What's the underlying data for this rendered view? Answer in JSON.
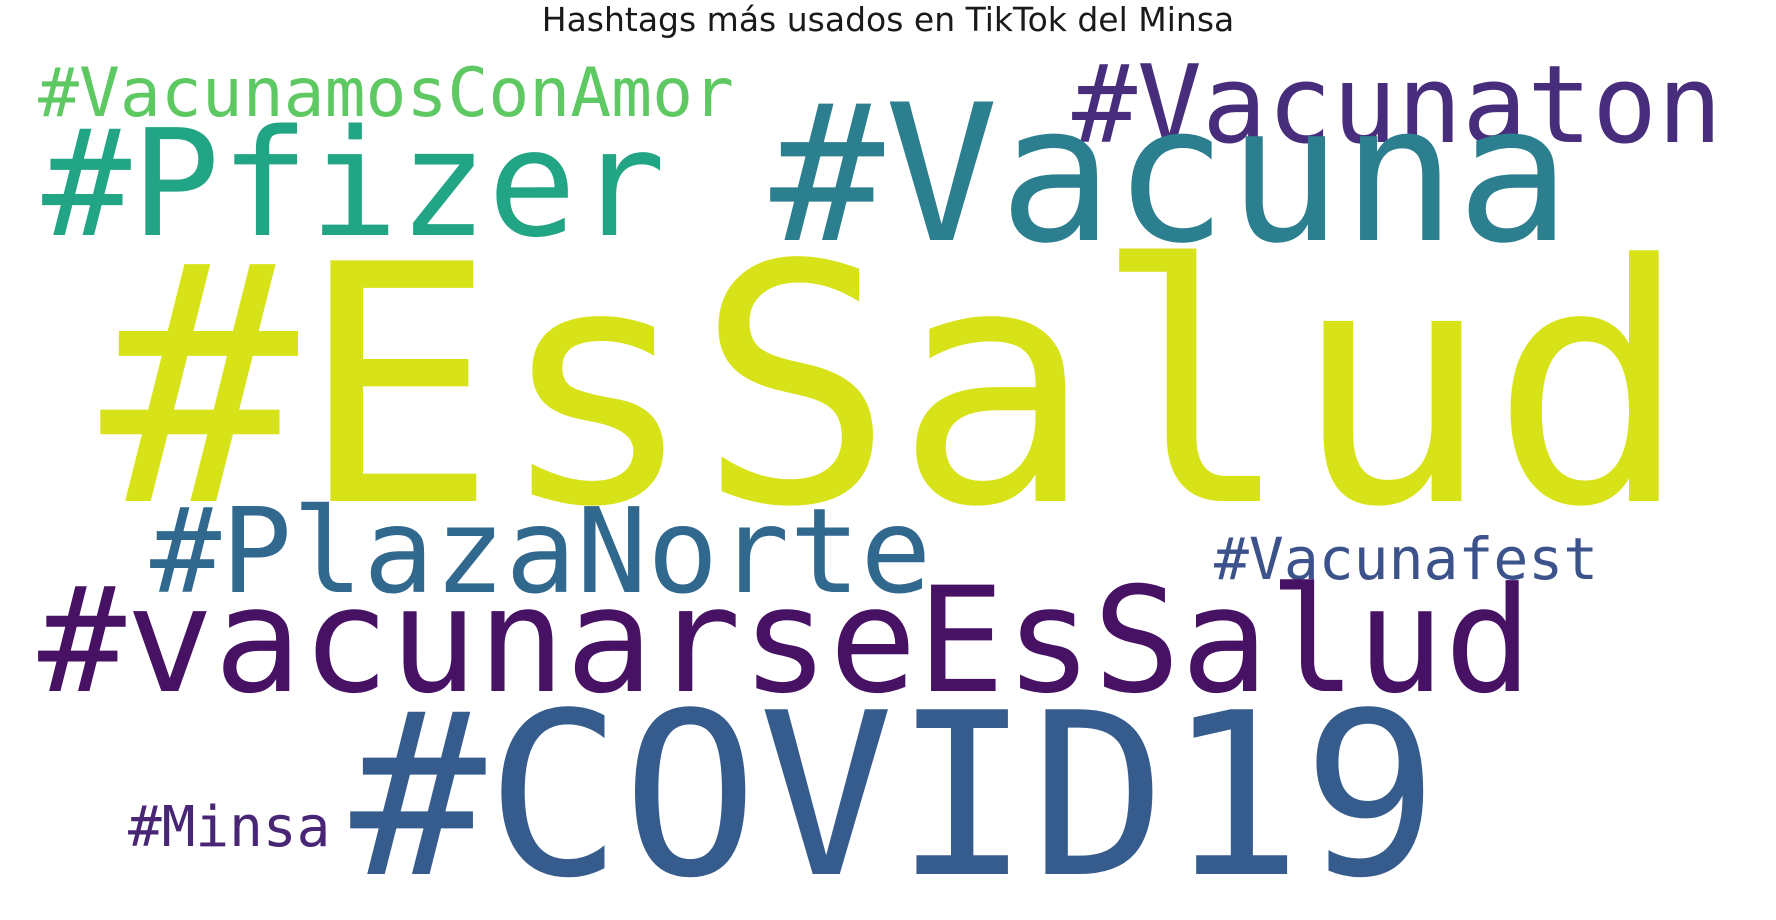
{
  "title": "Hashtags más usados en TikTok del Minsa",
  "words": [
    {
      "id": "w-vacunamosconamor",
      "text": "#VacunamosConAmor",
      "color": "#5ec962"
    },
    {
      "id": "w-vacunaton",
      "text": "#Vacunaton",
      "color": "#472d7b"
    },
    {
      "id": "w-pfizer",
      "text": "#Pfizer",
      "color": "#21a585"
    },
    {
      "id": "w-vacuna",
      "text": "#Vacuna",
      "color": "#2c7f8e"
    },
    {
      "id": "w-essalud",
      "text": "#EsSalud",
      "color": "#d8e219"
    },
    {
      "id": "w-plazanorte",
      "text": "#PlazaNorte",
      "color": "#31688e"
    },
    {
      "id": "w-vacunafest",
      "text": "#Vacunafest",
      "color": "#3b528b"
    },
    {
      "id": "w-vacunarseessalud",
      "text": "#vacunarseEsSalud",
      "color": "#471164"
    },
    {
      "id": "w-covid19",
      "text": "#COVID19",
      "color": "#365c8d"
    },
    {
      "id": "w-minsa",
      "text": "#Minsa",
      "color": "#482575"
    }
  ]
}
